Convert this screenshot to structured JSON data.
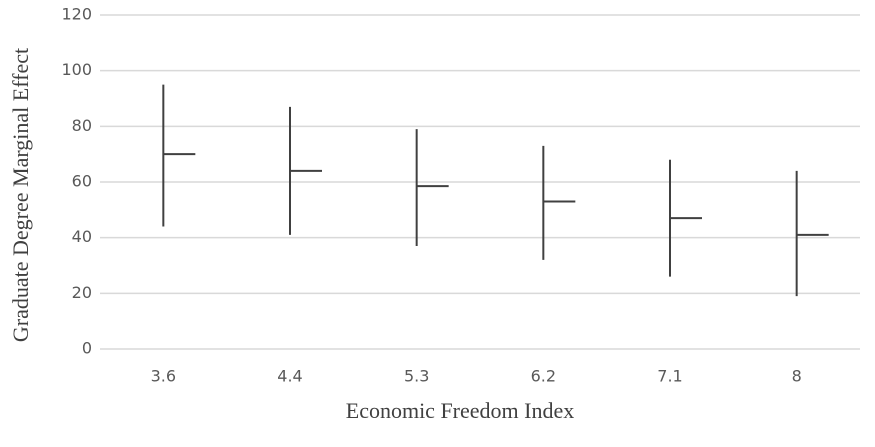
{
  "chart_data": {
    "type": "stock",
    "x_label": "Economic Freedom Index",
    "y_label": "Graduate Degree Marginal Effect",
    "categories": [
      "3.6",
      "4.4",
      "5.3",
      "6.2",
      "7.1",
      "8"
    ],
    "high": [
      95,
      87,
      79,
      73,
      68,
      64
    ],
    "low": [
      44,
      41,
      37,
      32,
      26,
      19
    ],
    "close": [
      70,
      64,
      58.5,
      53,
      47,
      41
    ],
    "color": "#404040",
    "ylim": [
      0,
      120
    ],
    "yticks": [
      0,
      20,
      40,
      60,
      80,
      100,
      120
    ],
    "grid": true
  }
}
